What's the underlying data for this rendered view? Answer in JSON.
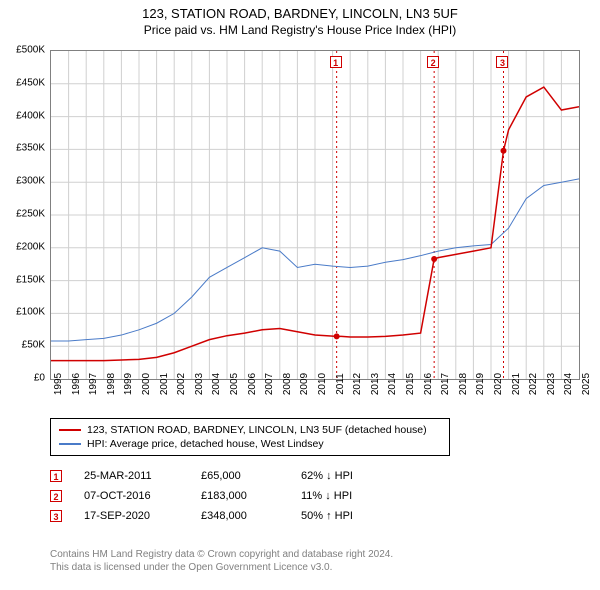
{
  "chart": {
    "title": "123, STATION ROAD, BARDNEY, LINCOLN, LN3 5UF",
    "subtitle": "Price paid vs. HM Land Registry's House Price Index (HPI)",
    "type": "line",
    "background_color": "#ffffff",
    "grid_color": "#d0d0d0",
    "axis_color": "#808080",
    "ylim": [
      0,
      500
    ],
    "ytick_step": 50,
    "ytick_labels": [
      "£0",
      "£50K",
      "£100K",
      "£150K",
      "£200K",
      "£250K",
      "£300K",
      "£350K",
      "£400K",
      "£450K",
      "£500K"
    ],
    "xlim": [
      1995,
      2025
    ],
    "xtick_labels": [
      "1995",
      "1996",
      "1997",
      "1998",
      "1999",
      "2000",
      "2001",
      "2002",
      "2003",
      "2004",
      "2005",
      "2006",
      "2007",
      "2008",
      "2009",
      "2010",
      "2011",
      "2012",
      "2013",
      "2014",
      "2015",
      "2016",
      "2017",
      "2018",
      "2019",
      "2020",
      "2021",
      "2022",
      "2023",
      "2024",
      "2025"
    ],
    "title_fontsize": 13,
    "subtitle_fontsize": 12,
    "tick_fontsize": 10,
    "series": [
      {
        "name": "price_paid",
        "label": "123, STATION ROAD, BARDNEY, LINCOLN, LN3 5UF (detached house)",
        "color": "#d00000",
        "line_width": 1.5,
        "x": [
          1995,
          1996,
          1997,
          1998,
          1999,
          2000,
          2001,
          2002,
          2003,
          2004,
          2005,
          2006,
          2007,
          2008,
          2009,
          2010,
          2011.23,
          2011.5,
          2012,
          2013,
          2014,
          2015,
          2016,
          2016.77,
          2017,
          2018,
          2019,
          2020,
          2020.71,
          2021,
          2022,
          2023,
          2024,
          2025
        ],
        "y": [
          28,
          28,
          28,
          28,
          29,
          30,
          33,
          40,
          50,
          60,
          66,
          70,
          75,
          77,
          72,
          67,
          65,
          65,
          64,
          64,
          65,
          67,
          70,
          183,
          185,
          190,
          195,
          200,
          348,
          380,
          430,
          445,
          410,
          415
        ]
      },
      {
        "name": "hpi",
        "label": "HPI: Average price, detached house, West Lindsey",
        "color": "#4a7bc8",
        "line_width": 1,
        "x": [
          1995,
          1996,
          1997,
          1998,
          1999,
          2000,
          2001,
          2002,
          2003,
          2004,
          2005,
          2006,
          2007,
          2008,
          2009,
          2010,
          2011,
          2012,
          2013,
          2014,
          2015,
          2016,
          2017,
          2018,
          2019,
          2020,
          2021,
          2022,
          2023,
          2024,
          2025
        ],
        "y": [
          58,
          58,
          60,
          62,
          67,
          75,
          85,
          100,
          125,
          155,
          170,
          185,
          200,
          195,
          170,
          175,
          172,
          170,
          172,
          178,
          182,
          188,
          195,
          200,
          203,
          205,
          230,
          275,
          295,
          300,
          305
        ]
      }
    ],
    "markers": [
      {
        "n": "1",
        "x": 2011.23,
        "y": 65,
        "date": "25-MAR-2011",
        "price": "£65,000",
        "pct": "62% ↓ HPI",
        "dash_color": "#d00000"
      },
      {
        "n": "2",
        "x": 2016.77,
        "y": 183,
        "date": "07-OCT-2016",
        "price": "£183,000",
        "pct": "11% ↓ HPI",
        "dash_color": "#d00000"
      },
      {
        "n": "3",
        "x": 2020.71,
        "y": 348,
        "date": "17-SEP-2020",
        "price": "£348,000",
        "pct": "50% ↑ HPI",
        "dash_color": "#d00000"
      }
    ],
    "marker_dot_color": "#d00000",
    "marker_dot_radius": 3,
    "marker_dash_pattern": "2,3"
  },
  "legend": {
    "border_color": "#000000",
    "fontsize": 10.5
  },
  "footer": {
    "line1": "Contains HM Land Registry data © Crown copyright and database right 2024.",
    "line2": "This data is licensed under the Open Government Licence v3.0.",
    "color": "#808080",
    "fontsize": 10
  }
}
